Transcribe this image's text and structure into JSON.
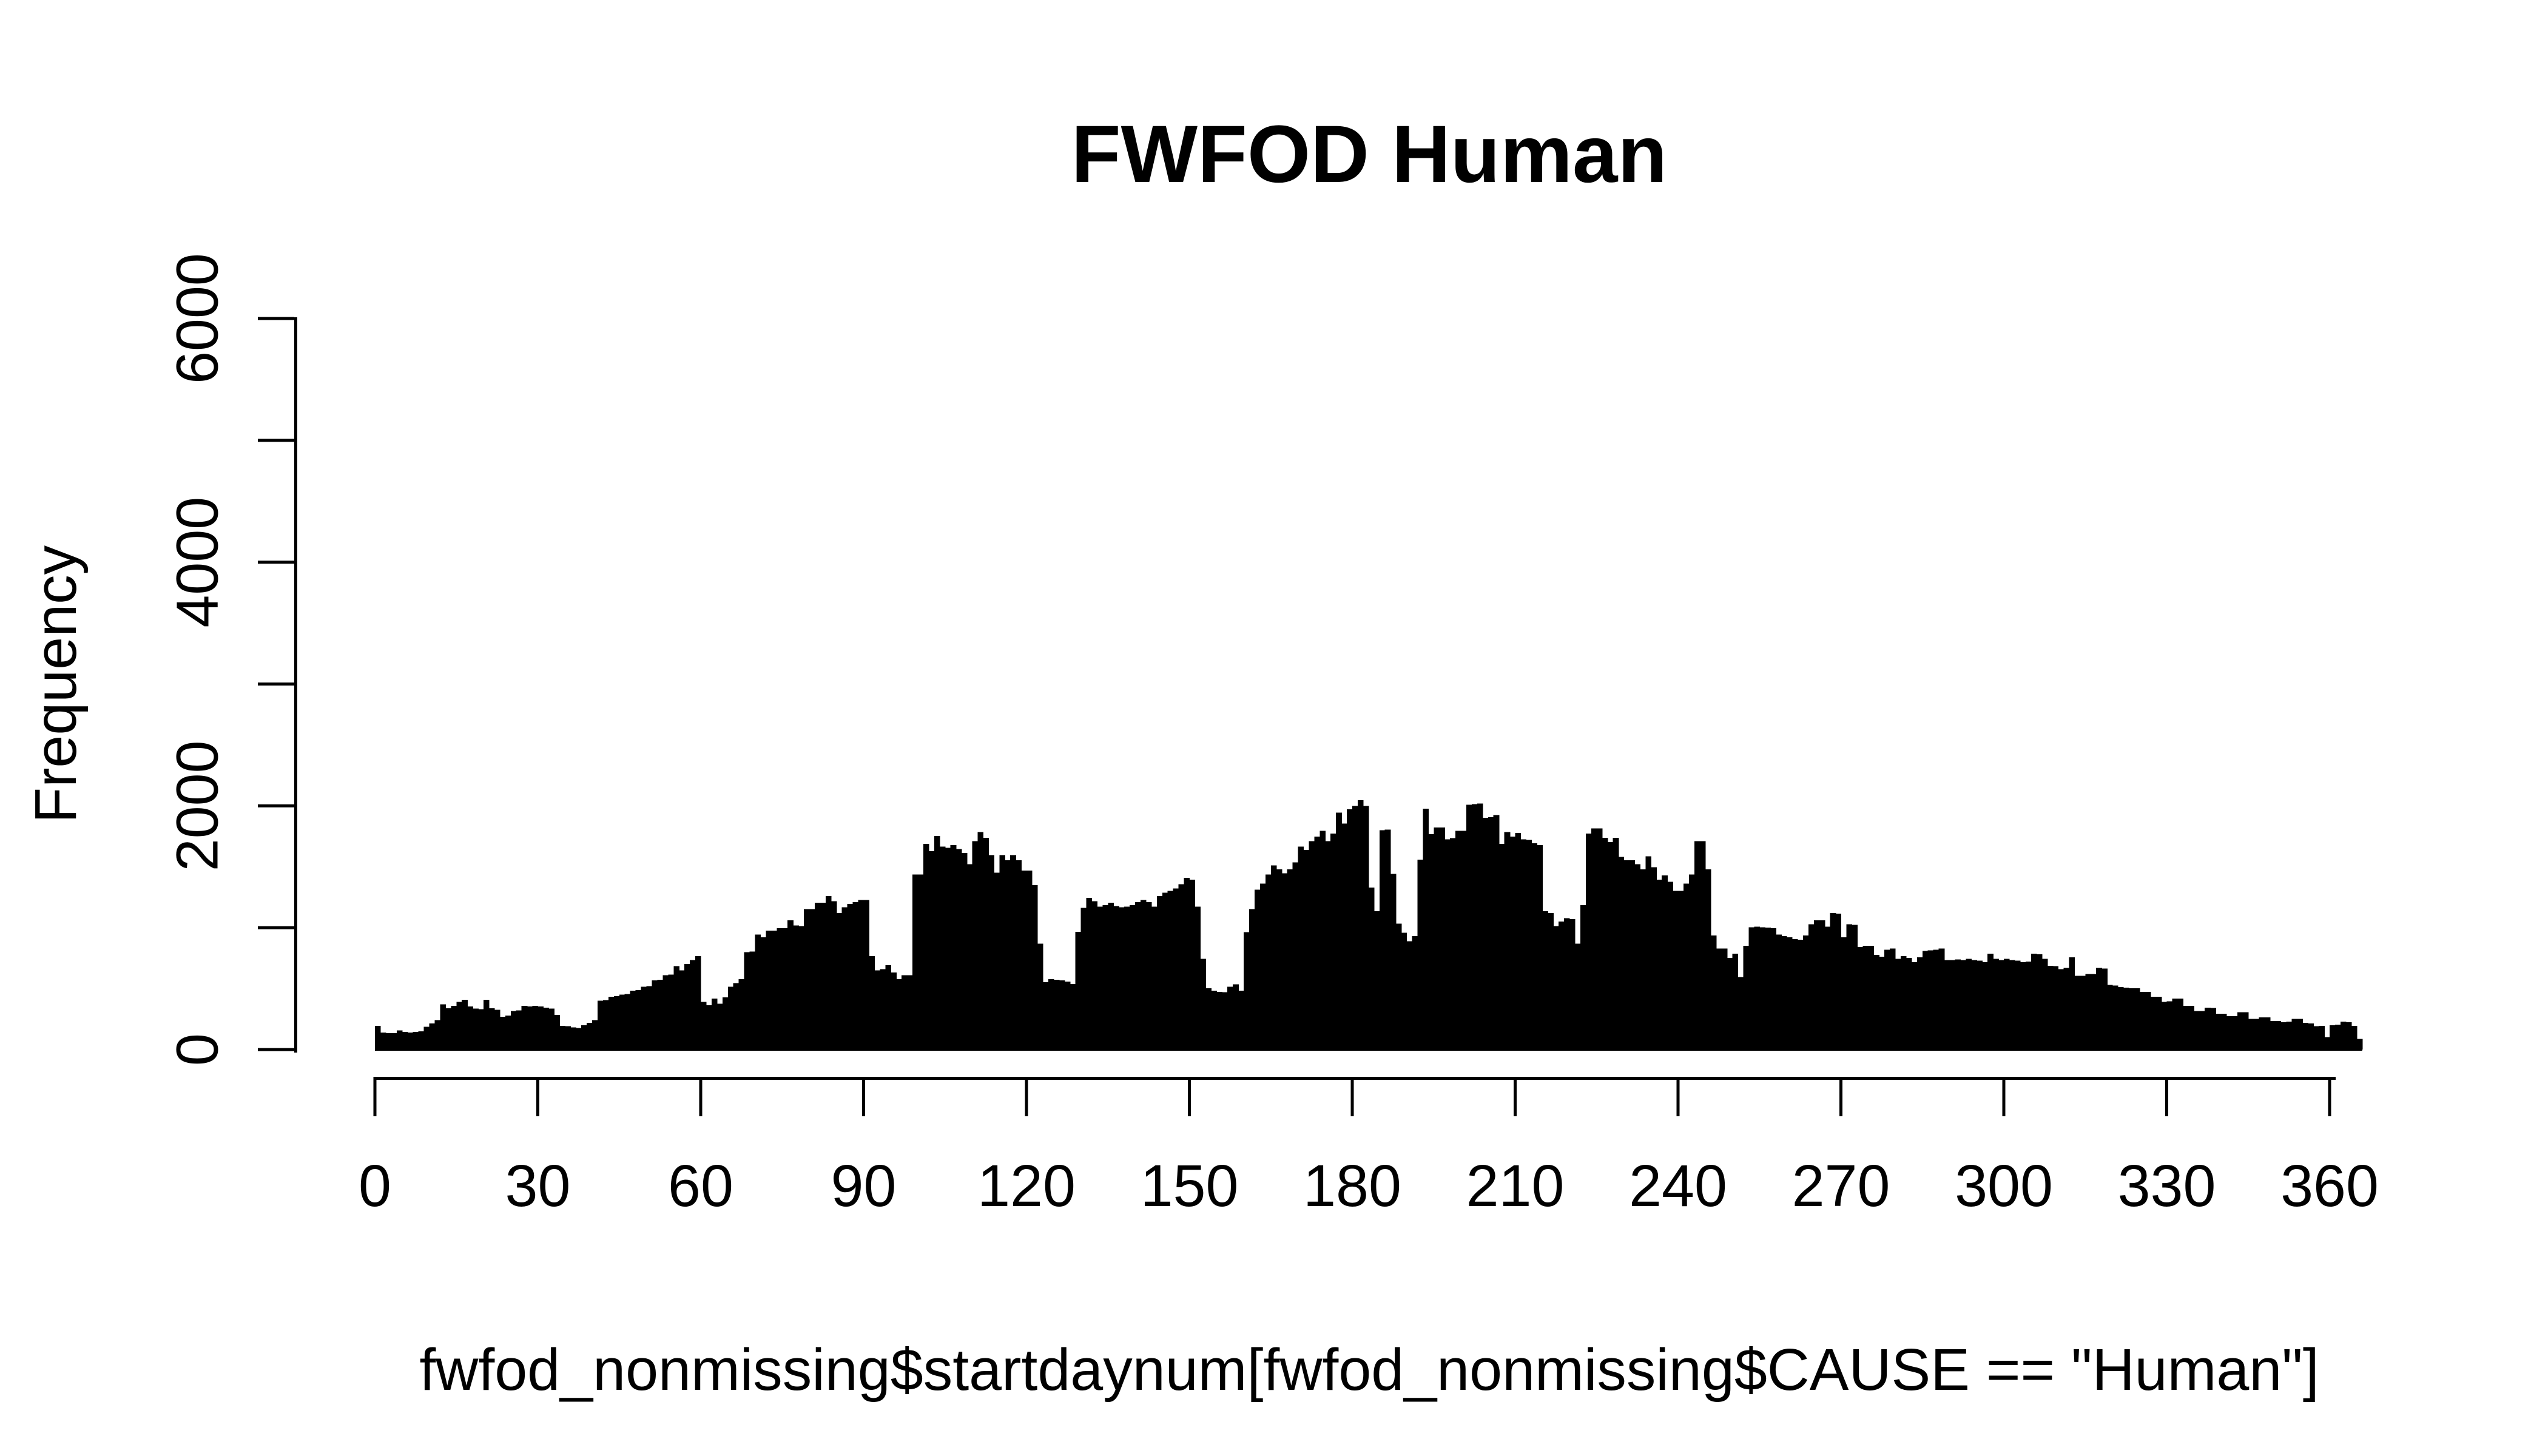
{
  "title": "FWFOD Human",
  "colors": {
    "bar": "#000000",
    "axis": "#000000",
    "text": "#000000",
    "background": "#ffffff"
  },
  "chart_data": {
    "type": "bar",
    "title": "FWFOD Human",
    "xlabel": "fwfod_nonmissing$startdaynum[fwfod_nonmissing$CAUSE == \"Human\"]",
    "ylabel": "Frequency",
    "xlim": [
      0,
      366
    ],
    "ylim": [
      0,
      6000
    ],
    "bin_width_days": 1,
    "grid": false,
    "legend": false,
    "x_axis": {
      "ticks": [
        0,
        30,
        60,
        90,
        120,
        150,
        180,
        210,
        240,
        270,
        300,
        330,
        360
      ]
    },
    "y_axis": {
      "ticks": [
        0,
        1000,
        2000,
        3000,
        4000,
        5000,
        6000
      ],
      "labeled_ticks": [
        0,
        2000,
        4000,
        6000
      ]
    },
    "values": [
      195,
      140,
      135,
      135,
      158,
      144,
      140,
      144,
      149,
      186,
      214,
      242,
      372,
      339,
      358,
      390,
      409,
      353,
      335,
      330,
      409,
      339,
      325,
      270,
      279,
      316,
      321,
      358,
      353,
      358,
      353,
      344,
      335,
      284,
      195,
      191,
      181,
      177,
      200,
      219,
      242,
      400,
      405,
      432,
      437,
      451,
      456,
      484,
      488,
      516,
      521,
      567,
      572,
      609,
      614,
      684,
      651,
      702,
      735,
      767,
      391,
      363,
      419,
      377,
      428,
      516,
      544,
      577,
      800,
      805,
      944,
      921,
      977,
      977,
      995,
      995,
      1060,
      1018,
      1014,
      1153,
      1153,
      1204,
      1204,
      1260,
      1218,
      1121,
      1167,
      1195,
      1209,
      1228,
      1228,
      767,
      651,
      660,
      693,
      632,
      577,
      609,
      609,
      1437,
      1437,
      1688,
      1628,
      1753,
      1665,
      1655,
      1679,
      1646,
      1614,
      1521,
      1711,
      1786,
      1739,
      1595,
      1451,
      1595,
      1553,
      1595,
      1553,
      1469,
      1469,
      1349,
      870,
      553,
      577,
      572,
      567,
      558,
      539,
      967,
      1163,
      1246,
      1218,
      1172,
      1186,
      1204,
      1177,
      1167,
      1172,
      1186,
      1209,
      1228,
      1209,
      1172,
      1260,
      1288,
      1302,
      1321,
      1358,
      1409,
      1395,
      1172,
      744,
      502,
      484,
      474,
      470,
      516,
      535,
      484,
      963,
      1153,
      1311,
      1363,
      1437,
      1511,
      1479,
      1446,
      1479,
      1535,
      1665,
      1637,
      1711,
      1748,
      1795,
      1711,
      1772,
      1944,
      1856,
      1972,
      2000,
      2046,
      2000,
      1330,
      1135,
      1800,
      1804,
      1442,
      1032,
      958,
      888,
      930,
      1558,
      1976,
      1767,
      1823,
      1823,
      1725,
      1735,
      1795,
      1795,
      2009,
      2014,
      2018,
      1902,
      1907,
      1925,
      1688,
      1786,
      1748,
      1777,
      1725,
      1721,
      1693,
      1679,
      1135,
      1121,
      1014,
      1051,
      1079,
      1070,
      870,
      1186,
      1772,
      1814,
      1814,
      1739,
      1702,
      1739,
      1581,
      1553,
      1553,
      1521,
      1479,
      1586,
      1497,
      1395,
      1428,
      1376,
      1302,
      1302,
      1363,
      1437,
      1711,
      1711,
      1479,
      935,
      828,
      828,
      753,
      786,
      595,
      851,
      1004,
      1009,
      1004,
      1000,
      995,
      944,
      930,
      921,
      907,
      902,
      935,
      1028,
      1060,
      1060,
      1009,
      1121,
      1116,
      921,
      1028,
      1023,
      842,
      851,
      851,
      777,
      763,
      818,
      828,
      744,
      767,
      753,
      716,
      758,
      809,
      814,
      818,
      828,
      735,
      735,
      739,
      735,
      744,
      735,
      730,
      716,
      786,
      744,
      735,
      744,
      735,
      730,
      716,
      721,
      786,
      781,
      744,
      688,
      684,
      660,
      670,
      758,
      605,
      605,
      619,
      619,
      670,
      665,
      530,
      525,
      512,
      507,
      502,
      502,
      474,
      474,
      432,
      432,
      391,
      395,
      419,
      419,
      358,
      358,
      316,
      316,
      344,
      340,
      293,
      293,
      274,
      274,
      307,
      307,
      251,
      251,
      265,
      265,
      233,
      233,
      223,
      228,
      251,
      251,
      219,
      214,
      191,
      195,
      102,
      200,
      205,
      228,
      223,
      195,
      88
    ]
  }
}
